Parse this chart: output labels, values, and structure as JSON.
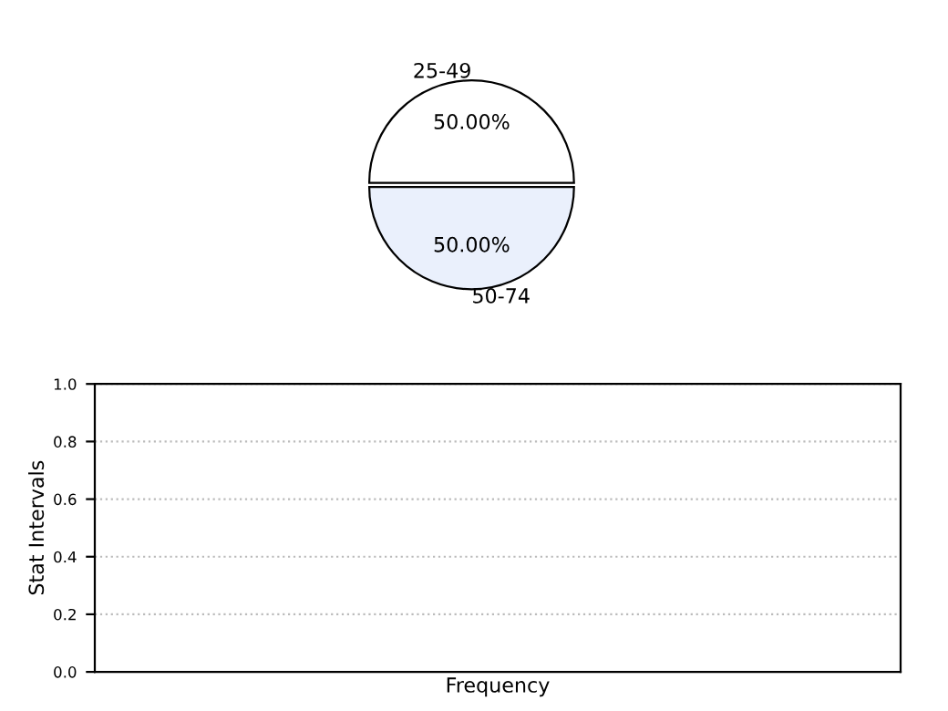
{
  "chart_data": [
    {
      "type": "pie",
      "categories": [
        "25-49",
        "50-74"
      ],
      "values": [
        50,
        50
      ],
      "colors": [
        "#ffffff",
        "#eaf0fc"
      ],
      "value_labels": [
        "50.00%",
        "50.00%"
      ]
    },
    {
      "type": "bar",
      "categories": [
        null
      ],
      "values": [
        null
      ],
      "xlabel": "Frequency",
      "ylabel": "Stat Intervals",
      "ylim": [
        0,
        1
      ],
      "yticks": [
        {
          "value": 0,
          "label": "0.0"
        },
        {
          "value": 0.2,
          "label": "0.2"
        },
        {
          "value": 0.4,
          "label": "0.4"
        },
        {
          "value": 0.6,
          "label": "0.6"
        },
        {
          "value": 0.8,
          "label": "0.8"
        },
        {
          "value": 1,
          "label": "1.0"
        }
      ],
      "grid": "y"
    }
  ]
}
